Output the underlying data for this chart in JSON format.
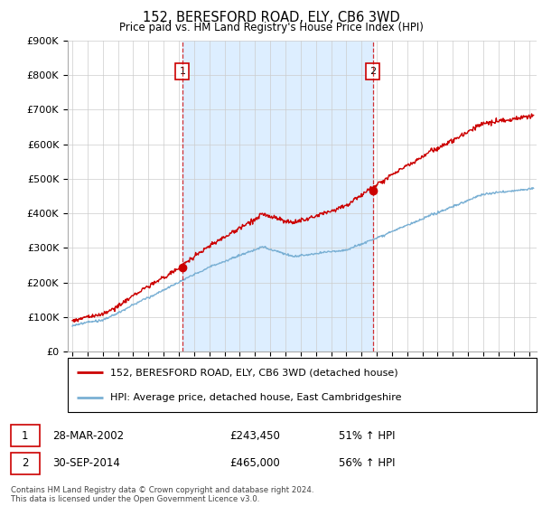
{
  "title": "152, BERESFORD ROAD, ELY, CB6 3WD",
  "subtitle": "Price paid vs. HM Land Registry's House Price Index (HPI)",
  "ylim": [
    0,
    900000
  ],
  "yticks": [
    0,
    100000,
    200000,
    300000,
    400000,
    500000,
    600000,
    700000,
    800000,
    900000
  ],
  "xlim_start": 1994.7,
  "xlim_end": 2025.5,
  "sale1_date": 2002.23,
  "sale1_price": 243450,
  "sale2_date": 2014.75,
  "sale2_price": 465000,
  "line1_color": "#cc0000",
  "line2_color": "#7ab0d4",
  "vline_color": "#cc0000",
  "shade_color": "#ddeeff",
  "legend1_label": "152, BERESFORD ROAD, ELY, CB6 3WD (detached house)",
  "legend2_label": "HPI: Average price, detached house, East Cambridgeshire",
  "footer": "Contains HM Land Registry data © Crown copyright and database right 2024.\nThis data is licensed under the Open Government Licence v3.0.",
  "background_color": "#ffffff",
  "grid_color": "#cccccc"
}
